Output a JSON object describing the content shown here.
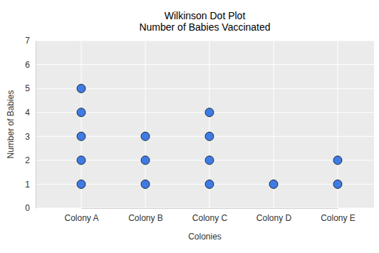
{
  "chart_data": {
    "type": "dot",
    "title": "Wilkinson Dot Plot",
    "subtitle": "Number of Babies Vaccinated",
    "x_label": "Colonies",
    "y_label": "Number of Babies",
    "categories": [
      "Colony A",
      "Colony B",
      "Colony C",
      "Colony D",
      "Colony E"
    ],
    "values": [
      5,
      3,
      4,
      1,
      2
    ],
    "color": "#3f7be3",
    "ylim": [
      0,
      7
    ],
    "yticks": [
      0,
      1,
      2,
      3,
      4,
      5,
      6,
      7
    ],
    "grid": true
  }
}
